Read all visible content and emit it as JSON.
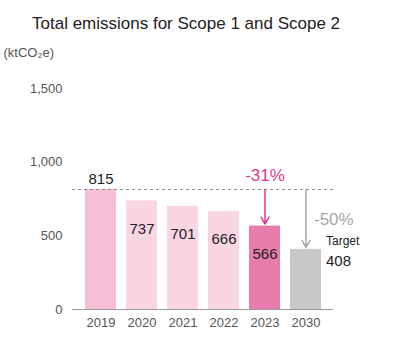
{
  "chart_data": {
    "type": "bar",
    "title": "Total emissions for Scope 1 and Scope 2",
    "y_label": "(ktCO₂e)",
    "categories": [
      "2019",
      "2020",
      "2021",
      "2022",
      "2023",
      "2030"
    ],
    "values": [
      815,
      737,
      701,
      666,
      566,
      408
    ],
    "colors": [
      "#f6bfd6",
      "#fad6e5",
      "#fad6e5",
      "#fad6e5",
      "#e87dad",
      "#c8c8c8"
    ],
    "ylim": [
      0,
      1500
    ],
    "yticks": [
      0,
      500,
      {
        "value": 1000,
        "label": "1,000"
      },
      {
        "value": 1500,
        "label": "1,500"
      }
    ],
    "grid": false,
    "data_labels": true,
    "annotations": [
      {
        "text": "-31%",
        "category": "2023",
        "color": "#e5388a",
        "marker": "arrow"
      },
      {
        "text": "-50%",
        "category": "2030",
        "color": "#a8a8a8",
        "marker": "arrow"
      },
      {
        "text": "Target",
        "category": "2030",
        "color": "#222222"
      }
    ]
  }
}
